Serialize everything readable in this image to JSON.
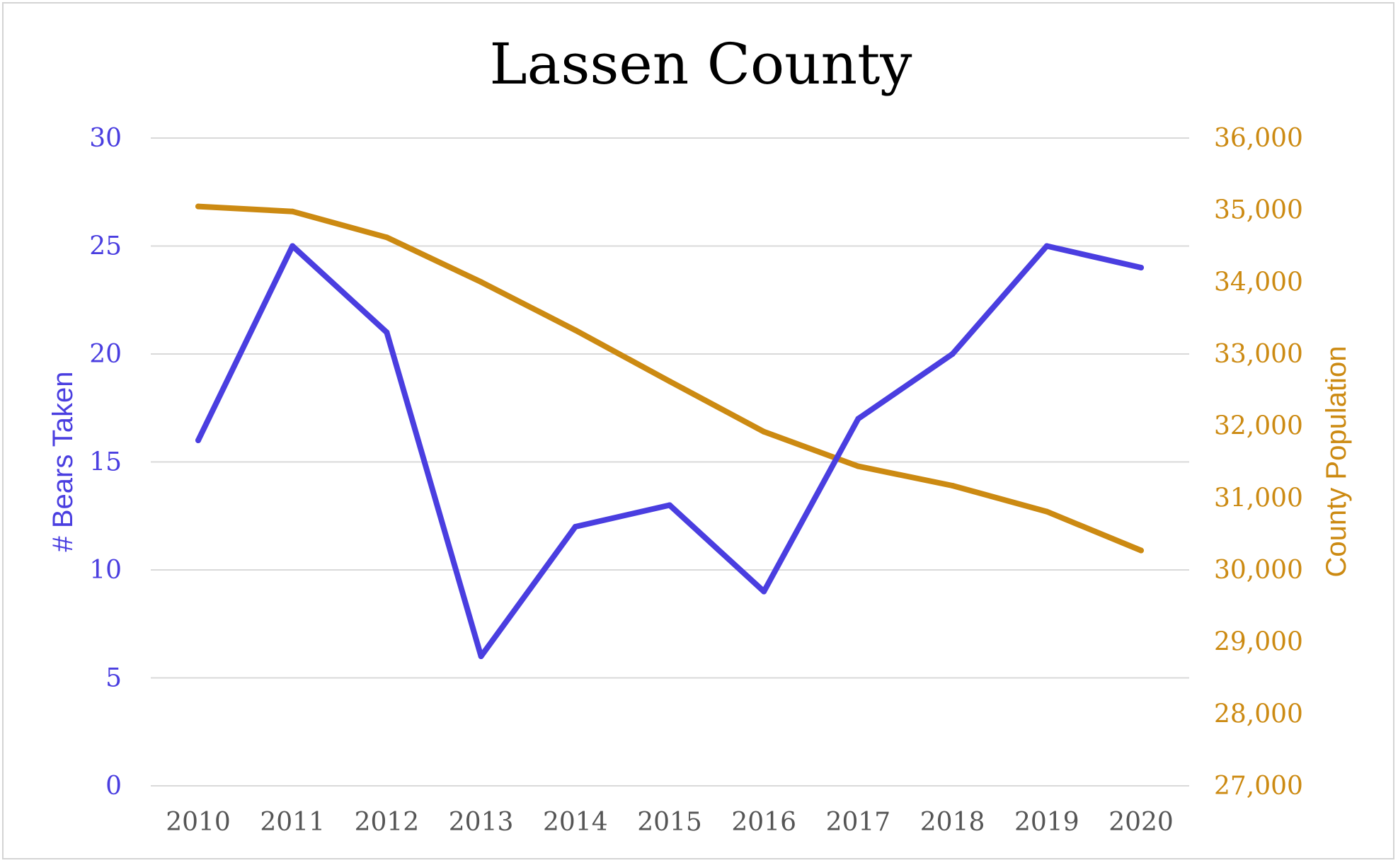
{
  "chart_data": {
    "type": "line",
    "title": "Lassen County",
    "categories": [
      "2010",
      "2011",
      "2012",
      "2013",
      "2014",
      "2015",
      "2016",
      "2017",
      "2018",
      "2019",
      "2020"
    ],
    "series": [
      {
        "name": "# Bears Taken",
        "axis": "left",
        "color": "#4a3ee0",
        "values": [
          16,
          25,
          21,
          6,
          12,
          13,
          9,
          17,
          20,
          25,
          24
        ]
      },
      {
        "name": "County Population",
        "axis": "right",
        "color": "#cc8a12",
        "values": [
          35050,
          34980,
          34620,
          34000,
          33330,
          32620,
          31920,
          31440,
          31170,
          30810,
          30270
        ]
      }
    ],
    "y_left": {
      "label": "# Bears Taken",
      "ylim": [
        0,
        30
      ],
      "ticks": [
        0,
        5,
        10,
        15,
        20,
        25,
        30
      ],
      "tick_labels": [
        "0",
        "5",
        "10",
        "15",
        "20",
        "25",
        "30"
      ]
    },
    "y_right": {
      "label": "County Population",
      "ylim": [
        27000,
        36000
      ],
      "ticks": [
        27000,
        28000,
        29000,
        30000,
        31000,
        32000,
        33000,
        34000,
        35000,
        36000
      ],
      "tick_labels": [
        "27,000",
        "28,000",
        "29,000",
        "30,000",
        "31,000",
        "32,000",
        "33,000",
        "34,000",
        "35,000",
        "36,000"
      ]
    },
    "grid": true,
    "legend": "none"
  }
}
